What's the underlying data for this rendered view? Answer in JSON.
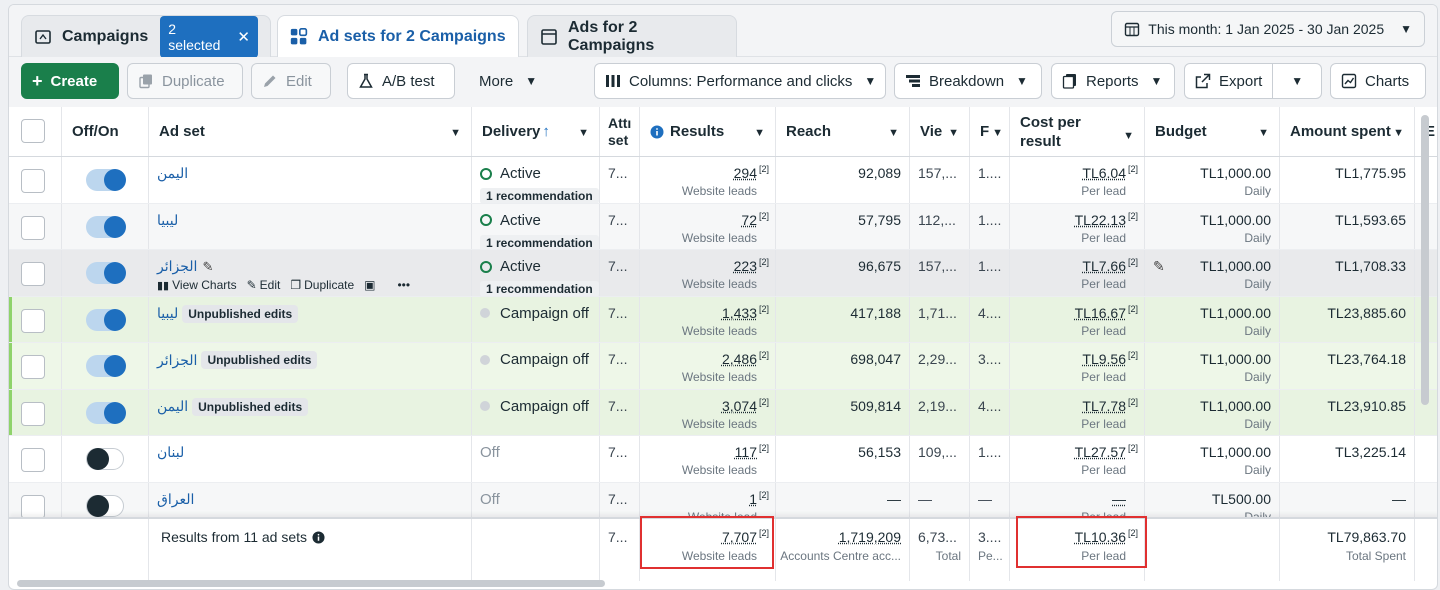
{
  "tabs": {
    "campaigns": "Campaigns",
    "selected_badge": "2 selected",
    "adsets": "Ad sets for 2 Campaigns",
    "ads": "Ads for 2 Campaigns"
  },
  "date_range": "This month: 1 Jan 2025 - 30 Jan 2025",
  "toolbar": {
    "create": "Create",
    "duplicate": "Duplicate",
    "edit": "Edit",
    "ab_test": "A/B test",
    "more": "More",
    "columns": "Columns: Performance and clicks",
    "breakdown": "Breakdown",
    "reports": "Reports",
    "export": "Export",
    "charts": "Charts"
  },
  "columns": {
    "offon": "Off/On",
    "adset": "Ad set",
    "delivery": "Delivery",
    "attribution": "Attı set",
    "results": "Results",
    "reach": "Reach",
    "views": "Vie",
    "freq": "F",
    "cost_line1": "Cost per",
    "cost_line2": "result",
    "budget": "Budget",
    "amount": "Amount spent",
    "extra": "E"
  },
  "rows": [
    {
      "name": "اليمن",
      "pill": "",
      "on": true,
      "status": "Active",
      "rec": "1 recommendation",
      "attr": "7...",
      "results": "294",
      "results_sub": "Website leads",
      "reach": "92,089",
      "views": "157,...",
      "freq": "1....",
      "cost": "TL6.04",
      "cost_sub": "Per lead",
      "budget": "TL1,000.00",
      "budget_sub": "Daily",
      "amount": "TL1,775.95"
    },
    {
      "name": "ليبيا",
      "pill": "",
      "on": true,
      "status": "Active",
      "rec": "1 recommendation",
      "attr": "7...",
      "results": "72",
      "results_sub": "Website leads",
      "reach": "57,795",
      "views": "112,...",
      "freq": "1....",
      "cost": "TL22.13",
      "cost_sub": "Per lead",
      "budget": "TL1,000.00",
      "budget_sub": "Daily",
      "amount": "TL1,593.65"
    },
    {
      "name": "الجزائر",
      "pill": "",
      "on": true,
      "status": "Active",
      "rec": "1 recommendation",
      "attr": "7...",
      "results": "223",
      "results_sub": "Website leads",
      "reach": "96,675",
      "views": "157,...",
      "freq": "1....",
      "cost": "TL7.66",
      "cost_sub": "Per lead",
      "budget": "TL1,000.00",
      "budget_sub": "Daily",
      "amount": "TL1,708.33"
    },
    {
      "name": "ليبيا",
      "pill": "Unpublished edits",
      "on": true,
      "status": "Campaign off",
      "rec": "",
      "attr": "7...",
      "results": "1,433",
      "results_sub": "Website leads",
      "reach": "417,188",
      "views": "1,71...",
      "freq": "4....",
      "cost": "TL16.67",
      "cost_sub": "Per lead",
      "budget": "TL1,000.00",
      "budget_sub": "Daily",
      "amount": "TL23,885.60"
    },
    {
      "name": "الجزائر",
      "pill": "Unpublished edits",
      "on": true,
      "status": "Campaign off",
      "rec": "",
      "attr": "7...",
      "results": "2,486",
      "results_sub": "Website leads",
      "reach": "698,047",
      "views": "2,29...",
      "freq": "3....",
      "cost": "TL9.56",
      "cost_sub": "Per lead",
      "budget": "TL1,000.00",
      "budget_sub": "Daily",
      "amount": "TL23,764.18"
    },
    {
      "name": "اليمن",
      "pill": "Unpublished edits",
      "on": true,
      "status": "Campaign off",
      "rec": "",
      "attr": "7...",
      "results": "3,074",
      "results_sub": "Website leads",
      "reach": "509,814",
      "views": "2,19...",
      "freq": "4....",
      "cost": "TL7.78",
      "cost_sub": "Per lead",
      "budget": "TL1,000.00",
      "budget_sub": "Daily",
      "amount": "TL23,910.85"
    },
    {
      "name": "لبنان",
      "pill": "",
      "on": false,
      "status": "Off",
      "rec": "",
      "attr": "7...",
      "results": "117",
      "results_sub": "Website leads",
      "reach": "56,153",
      "views": "109,...",
      "freq": "1....",
      "cost": "TL27.57",
      "cost_sub": "Per lead",
      "budget": "TL1,000.00",
      "budget_sub": "Daily",
      "amount": "TL3,225.14"
    },
    {
      "name": "العراق",
      "pill": "",
      "on": false,
      "status": "Off",
      "rec": "",
      "attr": "7...",
      "results": "1",
      "results_sub": "Website lead",
      "reach": "—",
      "views": "—",
      "freq": "—",
      "cost": "—",
      "cost_sub": "Per lead",
      "budget": "TL500.00",
      "budget_sub": "Daily",
      "amount": "—"
    }
  ],
  "hover_actions": {
    "view_charts": "View Charts",
    "edit": "Edit",
    "duplicate": "Duplicate",
    "more": "•••"
  },
  "summary": {
    "label": "Results from 11 ad sets",
    "attr": "7...",
    "results": "7,707",
    "results_sub": "Website leads",
    "reach": "1,719,209",
    "reach_sub": "Accounts Centre acc...",
    "views": "6,73...",
    "views_sub": "Total",
    "freq": "3....",
    "freq_sub": "Pe...",
    "cost": "TL10.36",
    "cost_sub": "Per lead",
    "amount": "TL79,863.70",
    "amount_sub": "Total Spent"
  },
  "sup_mark": "[2]",
  "colors": {
    "accent": "#1e6fbf",
    "create": "#1a7f4b",
    "highlight": "#e03030",
    "edited_row": "#eef7e8"
  }
}
